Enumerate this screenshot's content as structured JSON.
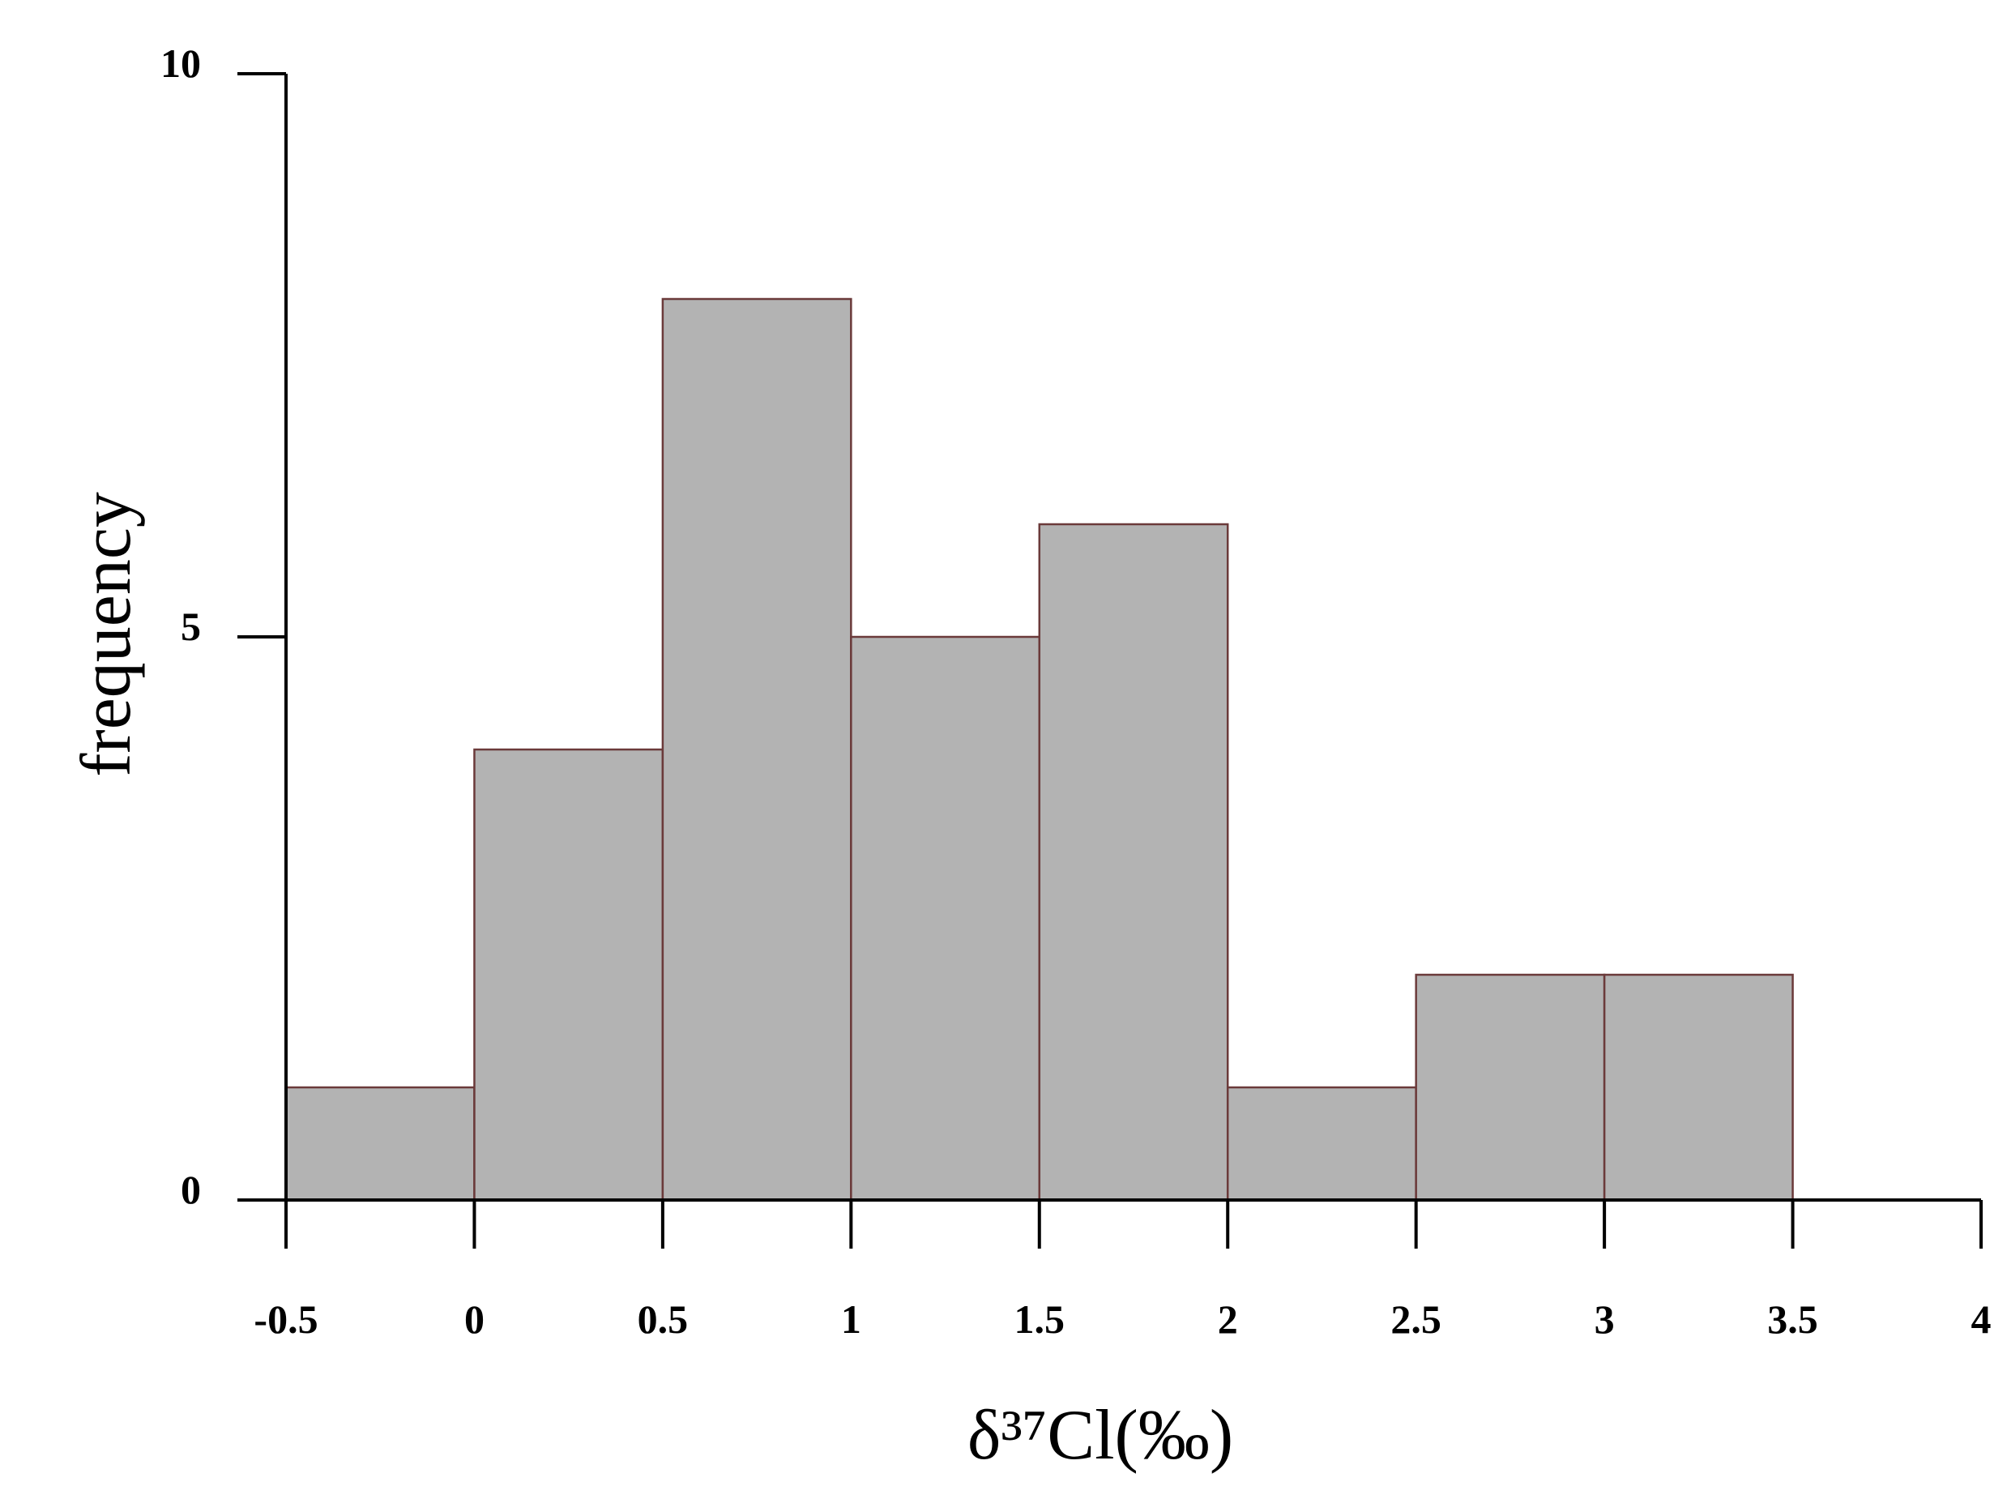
{
  "chart_data": {
    "type": "histogram",
    "x_label": "δ³⁷Cl(‰)",
    "y_label": "frequency",
    "bins": [
      -0.5,
      0,
      0.5,
      1,
      1.5,
      2,
      2.5,
      3,
      3.5
    ],
    "values": [
      1,
      4,
      8,
      5,
      6,
      1,
      2,
      2
    ],
    "color": "#b3b3b3",
    "edge_color": "#6b3a3a",
    "xlim": [
      -0.5,
      4
    ],
    "xticks": [
      -0.5,
      0,
      0.5,
      1,
      1.5,
      2,
      2.5,
      3,
      3.5,
      4
    ],
    "ylim": [
      0,
      10
    ],
    "yticks": [
      0,
      5,
      10
    ]
  }
}
